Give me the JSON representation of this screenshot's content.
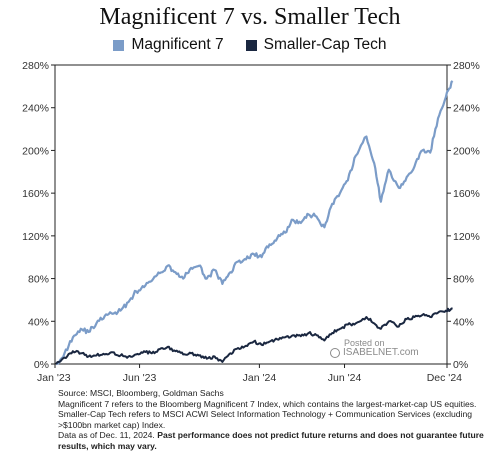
{
  "chart_data": {
    "type": "line",
    "title": "Magnificent 7 vs. Smaller Tech",
    "x_ticks": [
      "Jan '23",
      "Jun '23",
      "Jan '24",
      "Jun '24",
      "Dec '24"
    ],
    "y_ticks": [
      "0%",
      "40%",
      "80%",
      "120%",
      "160%",
      "200%",
      "240%",
      "280%"
    ],
    "ylim": [
      0,
      280
    ],
    "x_range": [
      "2023-01",
      "2024-12"
    ],
    "legend_position": "top",
    "grid": false,
    "series": [
      {
        "name": "Magnificent 7",
        "color": "#7b9cc8",
        "points": [
          [
            "2023-01-03",
            0
          ],
          [
            "2023-01-18",
            10
          ],
          [
            "2023-02-02",
            25
          ],
          [
            "2023-02-16",
            33
          ],
          [
            "2023-03-02",
            30
          ],
          [
            "2023-03-16",
            38
          ],
          [
            "2023-03-31",
            45
          ],
          [
            "2023-04-14",
            47
          ],
          [
            "2023-04-28",
            50
          ],
          [
            "2023-05-12",
            58
          ],
          [
            "2023-05-26",
            68
          ],
          [
            "2023-06-09",
            72
          ],
          [
            "2023-06-23",
            78
          ],
          [
            "2023-07-07",
            85
          ],
          [
            "2023-07-21",
            92
          ],
          [
            "2023-08-04",
            86
          ],
          [
            "2023-08-18",
            80
          ],
          [
            "2023-09-01",
            90
          ],
          [
            "2023-09-15",
            92
          ],
          [
            "2023-09-29",
            80
          ],
          [
            "2023-10-13",
            88
          ],
          [
            "2023-10-27",
            75
          ],
          [
            "2023-11-10",
            86
          ],
          [
            "2023-11-24",
            96
          ],
          [
            "2023-12-08",
            98
          ],
          [
            "2023-12-22",
            103
          ],
          [
            "2024-01-05",
            100
          ],
          [
            "2024-01-19",
            112
          ],
          [
            "2024-02-02",
            118
          ],
          [
            "2024-02-16",
            123
          ],
          [
            "2024-03-01",
            135
          ],
          [
            "2024-03-15",
            132
          ],
          [
            "2024-03-29",
            140
          ],
          [
            "2024-04-12",
            138
          ],
          [
            "2024-04-26",
            128
          ],
          [
            "2024-05-10",
            150
          ],
          [
            "2024-05-24",
            160
          ],
          [
            "2024-06-07",
            172
          ],
          [
            "2024-06-21",
            195
          ],
          [
            "2024-07-10",
            213
          ],
          [
            "2024-07-24",
            188
          ],
          [
            "2024-08-05",
            152
          ],
          [
            "2024-08-19",
            182
          ],
          [
            "2024-09-06",
            165
          ],
          [
            "2024-09-20",
            175
          ],
          [
            "2024-10-04",
            185
          ],
          [
            "2024-10-18",
            200
          ],
          [
            "2024-11-01",
            198
          ],
          [
            "2024-11-15",
            230
          ],
          [
            "2024-11-29",
            250
          ],
          [
            "2024-12-11",
            265
          ]
        ]
      },
      {
        "name": "Smaller-Cap Tech",
        "color": "#1a2740",
        "points": [
          [
            "2023-01-03",
            0
          ],
          [
            "2023-01-18",
            6
          ],
          [
            "2023-02-02",
            12
          ],
          [
            "2023-02-16",
            10
          ],
          [
            "2023-03-02",
            7
          ],
          [
            "2023-03-16",
            8
          ],
          [
            "2023-03-31",
            9
          ],
          [
            "2023-04-14",
            11
          ],
          [
            "2023-04-28",
            8
          ],
          [
            "2023-05-12",
            7
          ],
          [
            "2023-05-26",
            9
          ],
          [
            "2023-06-09",
            12
          ],
          [
            "2023-06-23",
            10
          ],
          [
            "2023-07-07",
            14
          ],
          [
            "2023-07-21",
            16
          ],
          [
            "2023-08-04",
            12
          ],
          [
            "2023-08-18",
            9
          ],
          [
            "2023-09-01",
            10
          ],
          [
            "2023-09-15",
            8
          ],
          [
            "2023-09-29",
            5
          ],
          [
            "2023-10-13",
            7
          ],
          [
            "2023-10-27",
            2
          ],
          [
            "2023-11-10",
            10
          ],
          [
            "2023-11-24",
            15
          ],
          [
            "2023-12-08",
            17
          ],
          [
            "2023-12-22",
            21
          ],
          [
            "2024-01-05",
            18
          ],
          [
            "2024-01-19",
            21
          ],
          [
            "2024-02-02",
            23
          ],
          [
            "2024-02-16",
            25
          ],
          [
            "2024-03-01",
            27
          ],
          [
            "2024-03-15",
            26
          ],
          [
            "2024-03-29",
            29
          ],
          [
            "2024-04-12",
            27
          ],
          [
            "2024-04-26",
            22
          ],
          [
            "2024-05-10",
            29
          ],
          [
            "2024-05-24",
            33
          ],
          [
            "2024-06-07",
            37
          ],
          [
            "2024-06-21",
            38
          ],
          [
            "2024-07-10",
            44
          ],
          [
            "2024-07-24",
            38
          ],
          [
            "2024-08-05",
            33
          ],
          [
            "2024-08-19",
            40
          ],
          [
            "2024-09-06",
            35
          ],
          [
            "2024-09-20",
            42
          ],
          [
            "2024-10-04",
            44
          ],
          [
            "2024-10-18",
            46
          ],
          [
            "2024-11-01",
            44
          ],
          [
            "2024-11-15",
            48
          ],
          [
            "2024-11-29",
            50
          ],
          [
            "2024-12-11",
            52
          ]
        ]
      }
    ]
  },
  "watermark": {
    "line1": "Posted on",
    "line2": "ISABELNET.com"
  },
  "notes": {
    "source": "Source: MSCI, Bloomberg, Goldman Sachs",
    "definitions": "Magnificent 7 refers to the Bloomberg Magnificent 7 Index, which contains the largest-market-cap US equities. Smaller-Cap Tech refers to MSCI ACWI Select Information Technology + Communication Services (excluding >$100bn market cap) Index.",
    "data_as_of": "Data as of Dec. 11, 2024.",
    "disclaimer": "Past performance does not predict future returns and does not guarantee future results, which may vary."
  }
}
